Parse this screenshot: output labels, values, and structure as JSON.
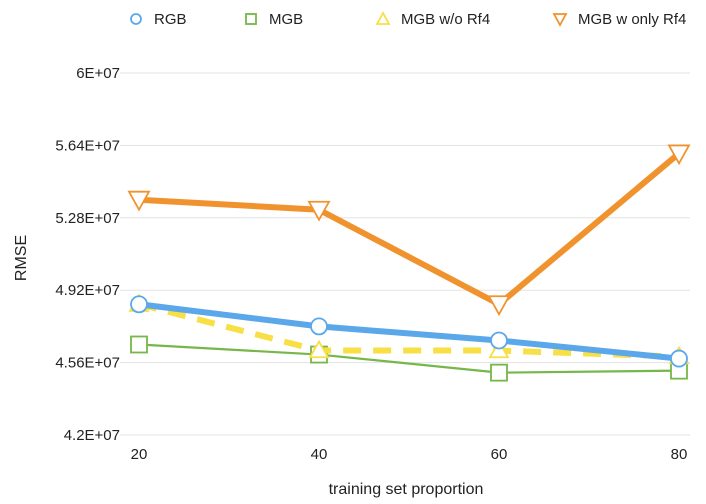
{
  "chart_data": {
    "type": "line",
    "title": "",
    "xlabel": "training set proportion",
    "ylabel": "RMSE",
    "x": [
      20,
      40,
      60,
      80
    ],
    "x_tick_labels": [
      "20",
      "40",
      "60",
      "80"
    ],
    "ylim": [
      42000000,
      60000000
    ],
    "y_ticks": [
      42000000,
      45600000,
      49200000,
      52800000,
      56400000,
      60000000
    ],
    "y_tick_labels": [
      "4.2E+07",
      "4.56E+07",
      "4.92E+07",
      "5.28E+07",
      "5.64E+07",
      "6E+07"
    ],
    "grid": true,
    "legend_position": "top",
    "series": [
      {
        "name": "RGB",
        "values": [
          48500000,
          47400000,
          46700000,
          45800000
        ],
        "color": "#5aa7ea",
        "marker": "circle",
        "line_style": "solid",
        "line_weight": "thick"
      },
      {
        "name": "MGB",
        "values": [
          46500000,
          46000000,
          45100000,
          45200000
        ],
        "color": "#76b749",
        "marker": "square",
        "line_style": "solid",
        "line_weight": "thin"
      },
      {
        "name": "MGB w/o Rf4",
        "values": [
          48500000,
          46200000,
          46200000,
          45900000
        ],
        "color": "#f7df45",
        "marker": "triangle-up",
        "line_style": "dashed",
        "line_weight": "thick"
      },
      {
        "name": "MGB w only Rf4",
        "values": [
          53700000,
          53200000,
          48500000,
          56000000
        ],
        "color": "#f0932e",
        "marker": "triangle-down",
        "line_style": "solid",
        "line_weight": "thick"
      }
    ]
  }
}
